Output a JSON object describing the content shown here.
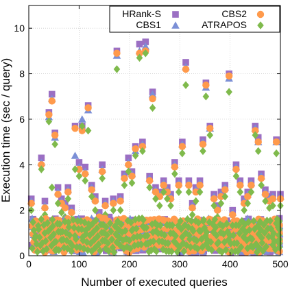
{
  "chart_data": {
    "type": "scatter",
    "title": "",
    "xlabel": "Number of executed queries",
    "ylabel": "Execution time (sec / query)",
    "xlim": [
      0,
      500
    ],
    "ylim": [
      0,
      11
    ],
    "xticks": [
      0,
      100,
      200,
      300,
      400,
      500
    ],
    "yticks": [
      0,
      2,
      4,
      6,
      8,
      10
    ],
    "grid": true,
    "legend_position": "top-right",
    "series": [
      {
        "name": "HRank-S",
        "marker": "square",
        "color": "#9b6fc3",
        "x": [
          5,
          12,
          18,
          25,
          32,
          40,
          46,
          52,
          58,
          65,
          72,
          78,
          85,
          92,
          100,
          106,
          112,
          118,
          125,
          132,
          140,
          146,
          152,
          160,
          168,
          175,
          182,
          190,
          198,
          205,
          212,
          220,
          226,
          232,
          240,
          246,
          252,
          260,
          268,
          275,
          282,
          290,
          298,
          305,
          312,
          318,
          325,
          332,
          340,
          346,
          352,
          360,
          368,
          375,
          382,
          390,
          398,
          405,
          412,
          420,
          428,
          435,
          442,
          450,
          456,
          462,
          470,
          478,
          485,
          492,
          500,
          30,
          90,
          150,
          210,
          270,
          330,
          390,
          450
        ],
        "y": [
          2.5,
          1.0,
          0.9,
          4.3,
          2.4,
          6.3,
          7.1,
          5.4,
          3.0,
          2.5,
          2.3,
          3.0,
          2.1,
          5.7,
          4.1,
          5.7,
          3.9,
          6.6,
          3.1,
          2.6,
          1.9,
          4.0,
          2.4,
          1.7,
          2.5,
          9.0,
          2.6,
          3.6,
          4.3,
          3.7,
          4.8,
          9.3,
          5.0,
          9.4,
          3.5,
          7.2,
          3.0,
          2.8,
          3.3,
          3.0,
          2.7,
          4.1,
          3.3,
          5.0,
          8.5,
          3.3,
          2.3,
          3.0,
          3.3,
          5.1,
          7.6,
          5.7,
          2.7,
          2.2,
          2.8,
          3.1,
          8.0,
          2.0,
          4.0,
          3.3,
          2.5,
          2.8,
          3.3,
          5.7,
          5.2,
          3.6,
          2.9,
          2.6,
          2.7,
          5.1,
          2.7,
          1.2,
          1.5,
          1.3,
          1.4,
          1.6,
          1.3,
          1.5,
          1.2
        ]
      },
      {
        "name": "CBS1",
        "marker": "triangle",
        "color": "#7b8fd6",
        "x": [
          5,
          12,
          18,
          25,
          32,
          40,
          46,
          52,
          58,
          65,
          72,
          78,
          85,
          92,
          100,
          106,
          112,
          118,
          125,
          132,
          140,
          146,
          152,
          160,
          168,
          175,
          182,
          190,
          198,
          205,
          212,
          220,
          226,
          232,
          240,
          246,
          252,
          260,
          268,
          275,
          282,
          290,
          298,
          305,
          312,
          318,
          325,
          332,
          340,
          346,
          352,
          360,
          368,
          375,
          382,
          390,
          398,
          405,
          412,
          420,
          428,
          435,
          442,
          450,
          456,
          462,
          470,
          478,
          485,
          492,
          500
        ],
        "y": [
          2.4,
          0.9,
          0.8,
          4.1,
          2.2,
          6.1,
          6.9,
          5.2,
          2.8,
          2.4,
          2.2,
          2.9,
          2.0,
          4.4,
          3.9,
          6.0,
          3.7,
          6.4,
          3.0,
          2.5,
          1.8,
          3.8,
          2.3,
          1.6,
          2.4,
          8.8,
          2.5,
          3.5,
          4.1,
          3.6,
          4.6,
          9.0,
          4.9,
          9.2,
          3.4,
          7.1,
          2.9,
          2.7,
          3.2,
          2.9,
          2.6,
          4.0,
          3.2,
          4.9,
          8.3,
          3.2,
          2.2,
          2.9,
          3.2,
          5.0,
          7.4,
          5.6,
          2.6,
          2.1,
          2.7,
          3.0,
          7.8,
          1.9,
          3.9,
          3.2,
          2.4,
          2.7,
          3.2,
          5.6,
          5.0,
          3.5,
          2.8,
          2.5,
          2.6,
          5.0,
          2.6
        ]
      },
      {
        "name": "CBS2",
        "marker": "circle",
        "color": "#ff9a4c",
        "x": [
          5,
          12,
          18,
          25,
          32,
          40,
          46,
          52,
          58,
          65,
          72,
          78,
          85,
          92,
          100,
          106,
          112,
          118,
          125,
          132,
          140,
          146,
          152,
          160,
          168,
          175,
          182,
          190,
          198,
          205,
          212,
          220,
          226,
          232,
          240,
          246,
          252,
          260,
          268,
          275,
          282,
          290,
          298,
          305,
          312,
          318,
          325,
          332,
          340,
          346,
          352,
          360,
          368,
          375,
          382,
          390,
          398,
          405,
          412,
          420,
          428,
          435,
          442,
          450,
          456,
          462,
          470,
          478,
          485,
          492,
          500
        ],
        "y": [
          2.3,
          0.8,
          0.7,
          4.0,
          2.1,
          6.2,
          6.8,
          5.3,
          2.7,
          2.3,
          2.1,
          2.8,
          1.9,
          5.6,
          3.8,
          5.5,
          3.6,
          6.5,
          2.9,
          2.4,
          1.7,
          3.7,
          2.2,
          1.5,
          2.3,
          8.9,
          2.4,
          3.4,
          4.0,
          3.5,
          4.7,
          8.9,
          4.8,
          9.0,
          3.3,
          6.9,
          2.8,
          2.6,
          3.1,
          2.8,
          2.5,
          3.9,
          3.1,
          4.8,
          8.2,
          3.1,
          2.1,
          2.8,
          3.1,
          4.9,
          7.5,
          5.6,
          2.5,
          2.0,
          2.6,
          2.9,
          7.9,
          1.8,
          3.8,
          3.1,
          2.3,
          2.6,
          3.1,
          5.5,
          5.0,
          3.4,
          2.7,
          2.4,
          2.5,
          5.0,
          2.5
        ]
      },
      {
        "name": "ATRAPOS",
        "marker": "diamond",
        "color": "#7fba4c",
        "x": [
          5,
          12,
          18,
          25,
          32,
          40,
          46,
          52,
          58,
          65,
          72,
          78,
          85,
          92,
          100,
          106,
          112,
          118,
          125,
          132,
          140,
          146,
          152,
          160,
          168,
          175,
          182,
          190,
          198,
          205,
          212,
          220,
          226,
          232,
          240,
          246,
          252,
          260,
          268,
          275,
          282,
          290,
          298,
          305,
          312,
          318,
          325,
          332,
          340,
          346,
          352,
          360,
          368,
          375,
          382,
          390,
          398,
          405,
          412,
          420,
          428,
          435,
          442,
          450,
          456,
          462,
          470,
          478,
          485,
          492,
          500
        ],
        "y": [
          2.0,
          0.6,
          0.5,
          3.8,
          1.8,
          5.9,
          3.0,
          4.9,
          2.3,
          1.9,
          1.7,
          2.5,
          1.6,
          3.8,
          3.5,
          5.7,
          3.3,
          5.5,
          2.6,
          2.0,
          1.4,
          3.4,
          1.8,
          1.2,
          2.0,
          8.2,
          2.0,
          3.1,
          3.7,
          3.2,
          4.4,
          8.7,
          4.6,
          8.9,
          3.0,
          6.5,
          2.5,
          2.2,
          2.8,
          2.5,
          2.2,
          3.6,
          2.8,
          4.5,
          7.5,
          2.8,
          1.8,
          2.4,
          2.8,
          4.6,
          7.0,
          5.3,
          2.2,
          1.7,
          2.3,
          2.6,
          7.2,
          1.5,
          3.5,
          2.8,
          2.0,
          2.3,
          2.8,
          5.3,
          4.6,
          3.1,
          2.4,
          2.1,
          2.2,
          4.5,
          2.2
        ]
      }
    ]
  }
}
